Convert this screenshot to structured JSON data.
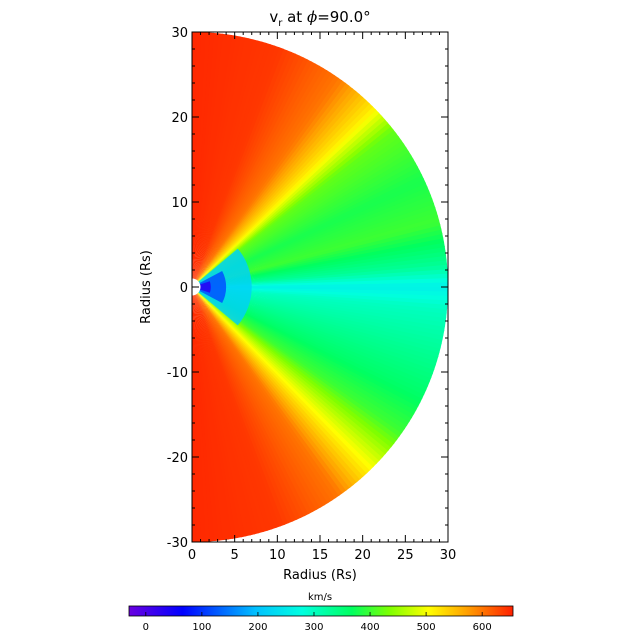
{
  "chart_data": {
    "type": "heatmap",
    "title_main": "v",
    "title_sub": "r",
    "title_rest": " at ",
    "title_phi": "ϕ",
    "title_value": "=90.0°",
    "xlabel": "Radius (Rs)",
    "ylabel": "Radius (Rs)",
    "xlim": [
      0,
      30
    ],
    "ylim": [
      -30,
      30
    ],
    "xticks": [
      "0",
      "5",
      "10",
      "15",
      "20",
      "25",
      "30"
    ],
    "yticks": [
      "30",
      "20",
      "10",
      "0",
      "-10",
      "-20",
      "-30"
    ],
    "r_min": 1,
    "r_max": 30,
    "colorbar": {
      "label": "km/s",
      "range": [
        -30,
        655
      ],
      "ticks": [
        "0",
        "100",
        "200",
        "300",
        "400",
        "500",
        "600"
      ],
      "colors": [
        "#6a00e0",
        "#0000ff",
        "#00c0ff",
        "#00ffe0",
        "#00ff60",
        "#80ff00",
        "#ffff00",
        "#ffa000",
        "#ff2000"
      ]
    },
    "wind_profile": [
      {
        "theta_deg": 90,
        "v_r": 650
      },
      {
        "theta_deg": 70,
        "v_r": 640
      },
      {
        "theta_deg": 55,
        "v_r": 600
      },
      {
        "theta_deg": 45,
        "v_r": 520
      },
      {
        "theta_deg": 38,
        "v_r": 420
      },
      {
        "theta_deg": 25,
        "v_r": 380
      },
      {
        "theta_deg": 15,
        "v_r": 400
      },
      {
        "theta_deg": 5,
        "v_r": 330
      },
      {
        "theta_deg": 0,
        "v_r": 260
      },
      {
        "theta_deg": -5,
        "v_r": 300
      },
      {
        "theta_deg": -15,
        "v_r": 330
      },
      {
        "theta_deg": -25,
        "v_r": 360
      },
      {
        "theta_deg": -35,
        "v_r": 400
      },
      {
        "theta_deg": -45,
        "v_r": 500
      },
      {
        "theta_deg": -55,
        "v_r": 600
      },
      {
        "theta_deg": -70,
        "v_r": 640
      },
      {
        "theta_deg": -90,
        "v_r": 650
      }
    ]
  }
}
